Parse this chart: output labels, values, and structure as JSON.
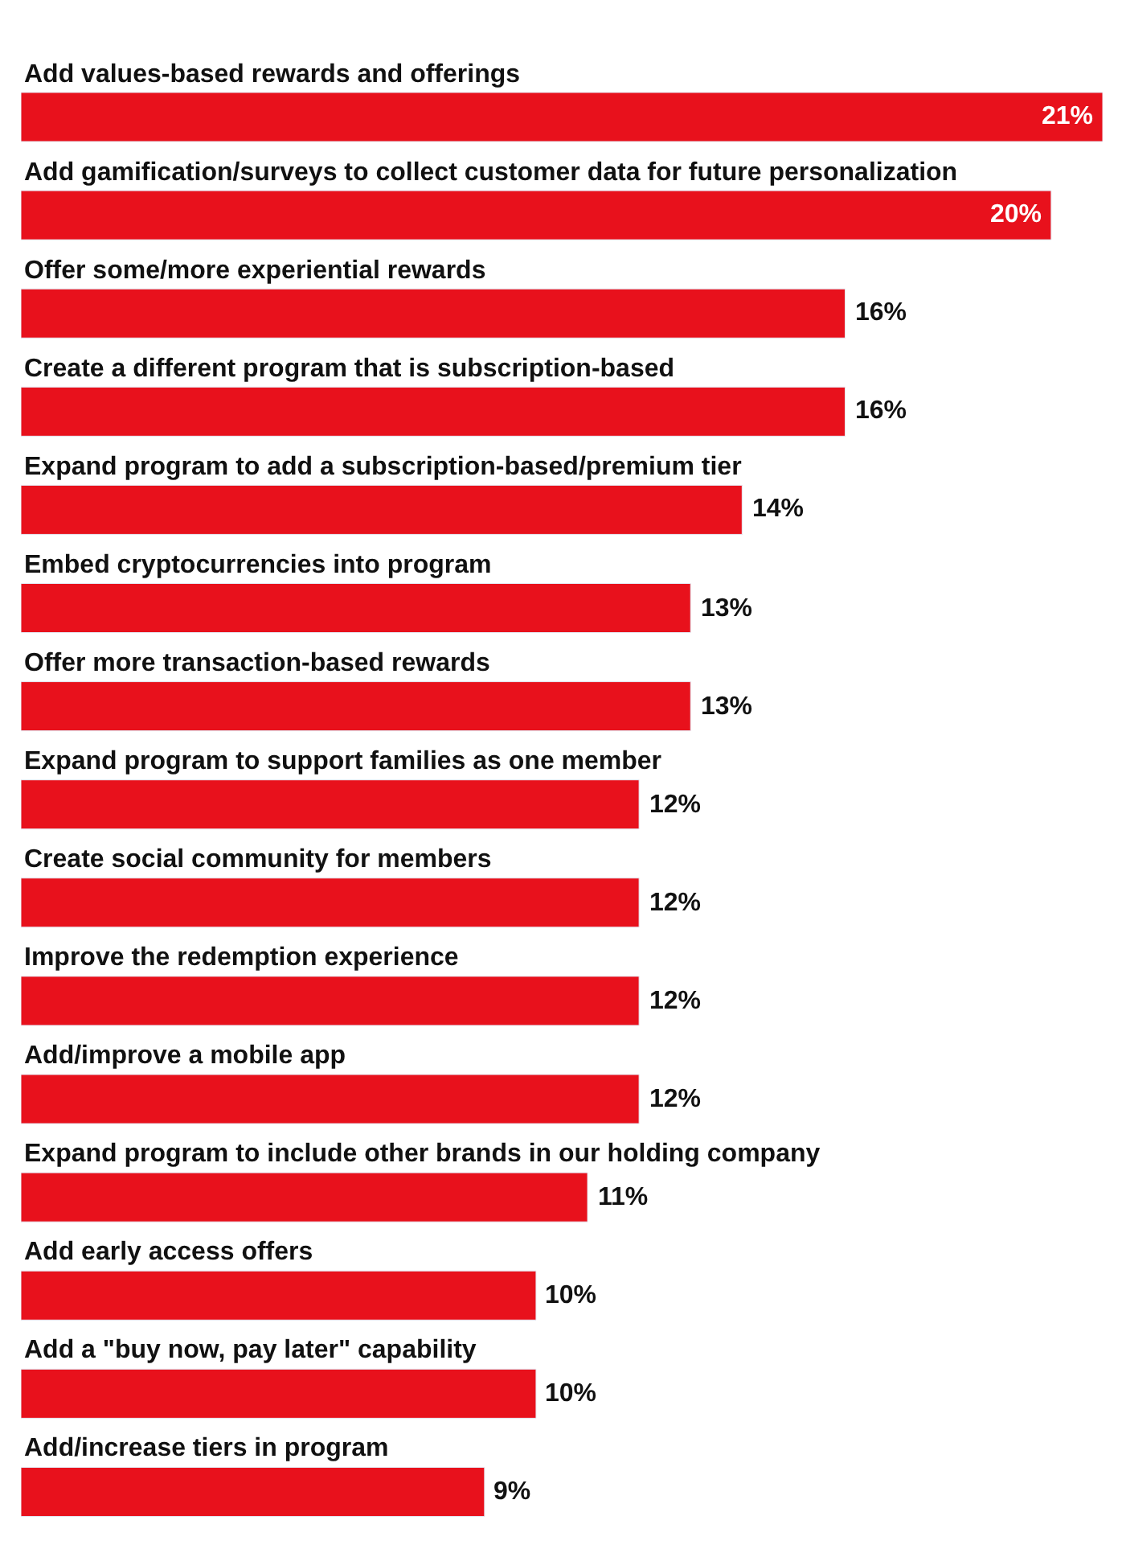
{
  "chart_data": {
    "type": "bar",
    "orientation": "horizontal",
    "color": "#e8111c",
    "categories": [
      "Add values-based rewards and offerings",
      "Add gamification/surveys to collect customer data for future personalization",
      "Offer some/more experiential rewards",
      "Create a different program that is subscription-based",
      "Expand program to add a subscription-based/premium tier",
      "Embed cryptocurrencies into program",
      "Offer more transaction-based rewards",
      "Expand program to support families as one member",
      "Create social community for members",
      "Improve the redemption experience",
      "Add/improve a mobile app",
      "Expand program to include other brands in our holding company",
      "Add early access offers",
      "Add a \"buy now, pay later\" capability",
      "Add/increase tiers in program"
    ],
    "values": [
      21,
      20,
      16,
      16,
      14,
      13,
      13,
      12,
      12,
      12,
      12,
      11,
      10,
      10,
      9
    ],
    "value_labels": [
      "21%",
      "20%",
      "16%",
      "16%",
      "14%",
      "13%",
      "13%",
      "12%",
      "12%",
      "12%",
      "12%",
      "11%",
      "10%",
      "10%",
      "9%"
    ],
    "legend": false
  }
}
